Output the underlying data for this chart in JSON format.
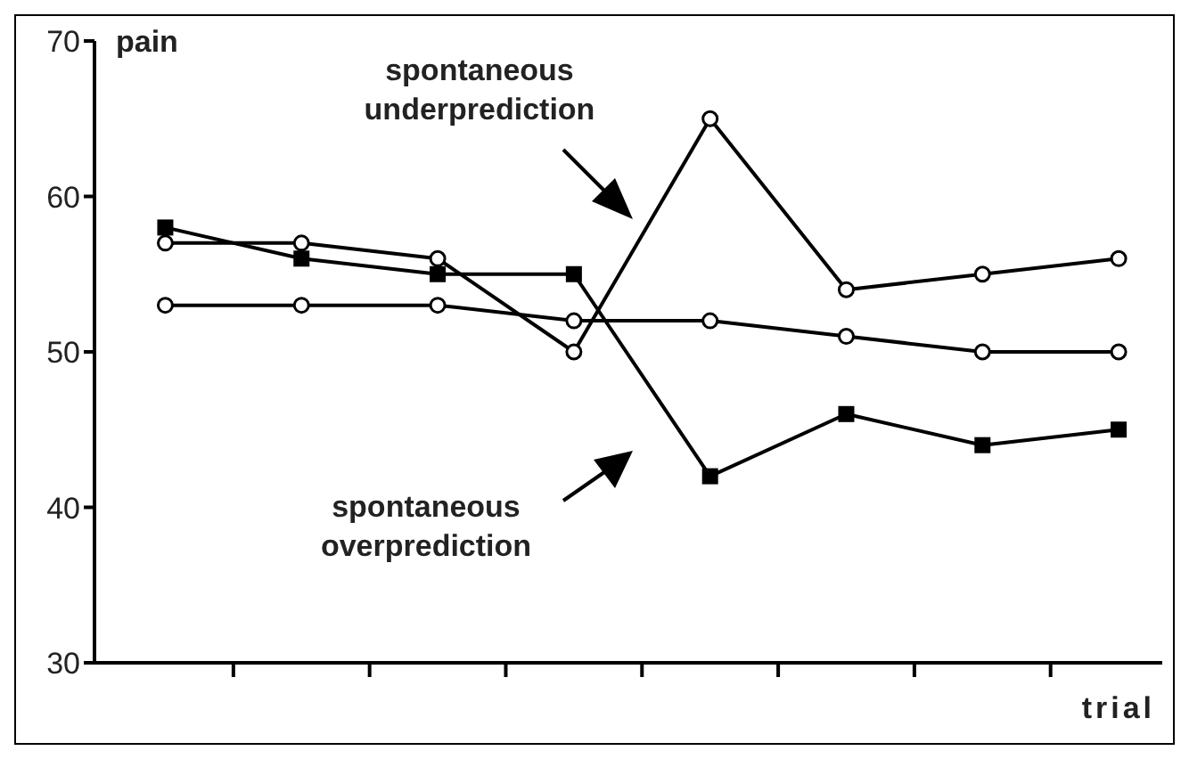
{
  "chart_data": {
    "type": "line",
    "ylabel": "pain",
    "xlabel": "trial",
    "categories": [
      null,
      null,
      null,
      null,
      null,
      null,
      null,
      null
    ],
    "ylim": [
      30,
      70
    ],
    "yticks": [
      30,
      40,
      50,
      60,
      70
    ],
    "grid": false,
    "legend": false,
    "line_style": "solid",
    "annotations": [
      "spontaneous underprediction",
      "spontaneous overprediction"
    ],
    "series": [
      {
        "color": "#000000",
        "marker": "circle",
        "values": [
          57,
          57,
          56,
          50,
          65,
          54,
          55,
          56
        ]
      },
      {
        "color": "#000000",
        "marker": "square",
        "values": [
          58,
          56,
          55,
          55,
          42,
          46,
          44,
          45
        ]
      },
      {
        "color": "#000000",
        "marker": "circle",
        "values": [
          53,
          53,
          53,
          52,
          52,
          51,
          50,
          50
        ]
      }
    ]
  }
}
